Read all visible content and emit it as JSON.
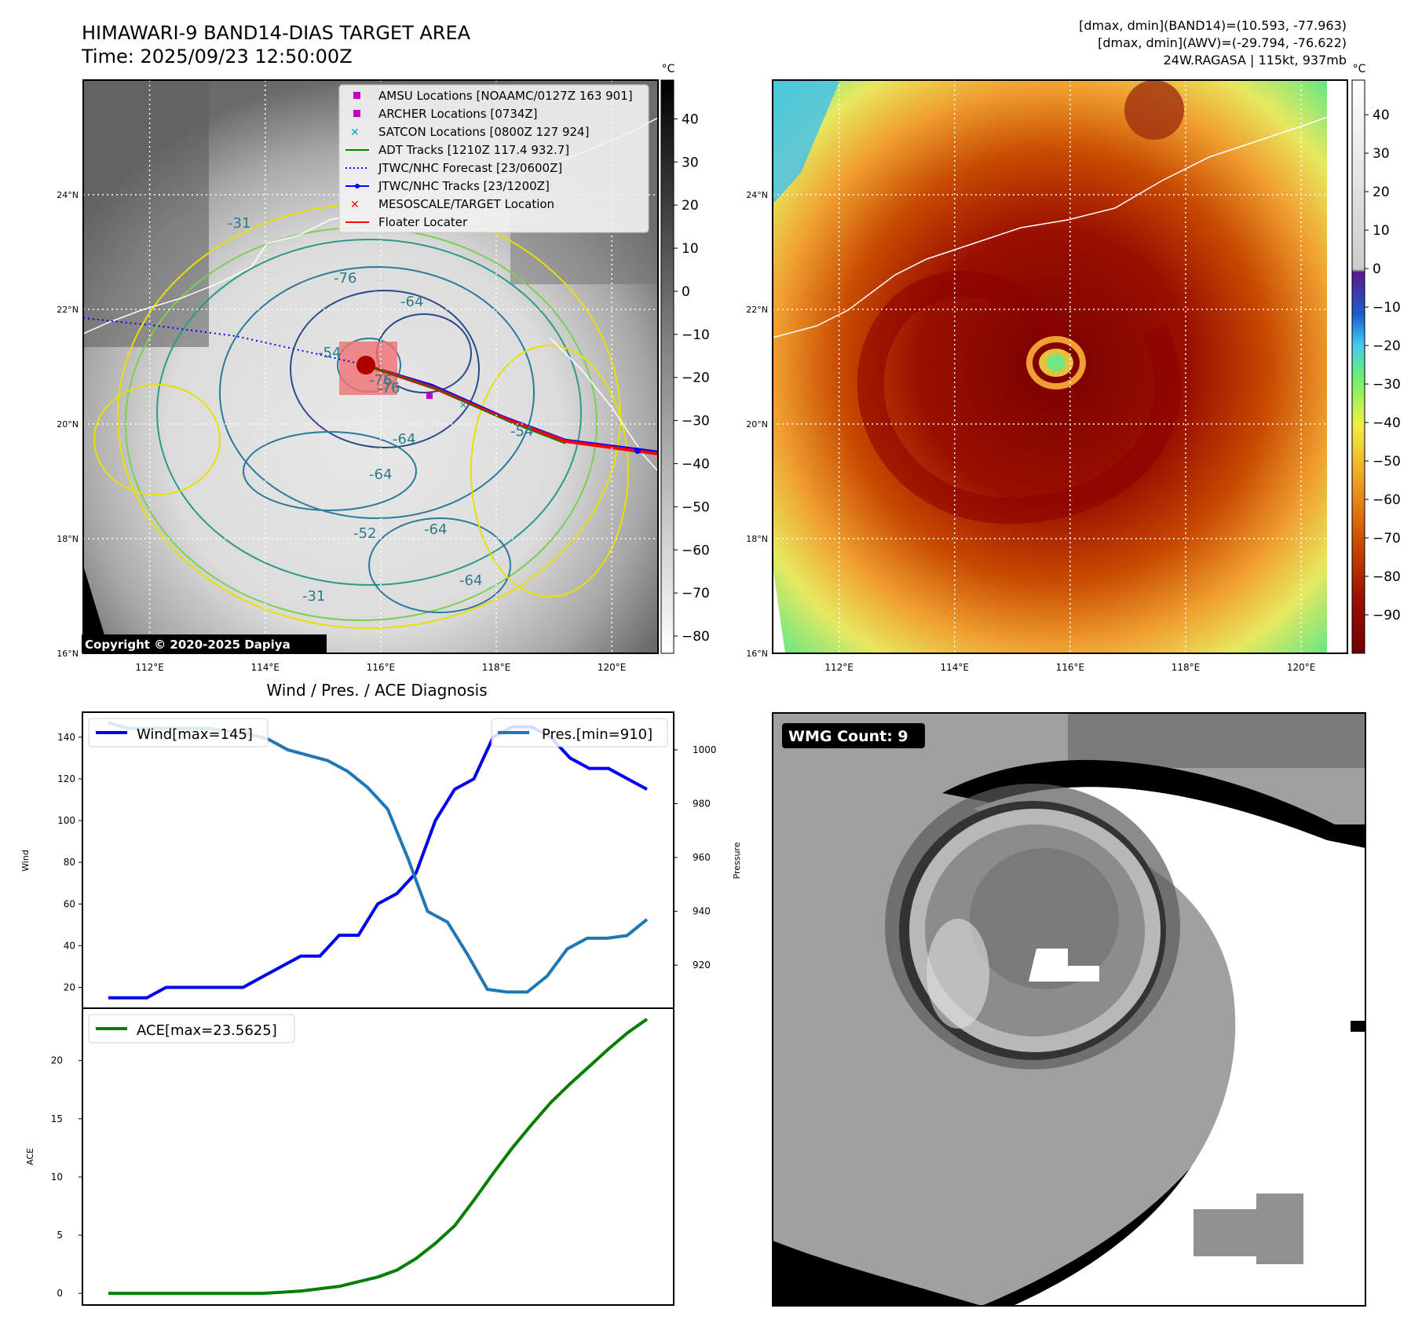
{
  "header": {
    "title_line1": "HIMAWARI-9 BAND14-DIAS TARGET AREA",
    "title_line2": "Time: 2025/09/23 12:50:00Z",
    "info_line1": "[dmax, dmin](BAND14)=(10.593, -77.963)",
    "info_line2": "[dmax, dmin](AWV)=(-29.794, -76.622)",
    "info_line3": "24W.RAGASA | 115kt, 937mb"
  },
  "map_panel": {
    "copyright": "Copyright © 2020-2025 Dapiya",
    "lon_labels": [
      "112°E",
      "114°E",
      "116°E",
      "118°E",
      "120°E"
    ],
    "lon_values": [
      112,
      114,
      116,
      118,
      120
    ],
    "lat_labels": [
      "16°N",
      "18°N",
      "20°N",
      "22°N",
      "24°N"
    ],
    "lat_values": [
      16,
      18,
      20,
      22,
      24
    ],
    "extent": {
      "lon": [
        110.85,
        120.8
      ],
      "lat": [
        16,
        26
      ]
    },
    "contour_labels": [
      "-31",
      "-76",
      "-64",
      "-54",
      "-76",
      "-64",
      "-64",
      "-31",
      "-54",
      "-76",
      "-64",
      "-52",
      "-64"
    ],
    "legend": [
      {
        "label": "AMSU Locations [NOAAMC/0127Z 163 901]",
        "marker": "square",
        "color": "#c000c0"
      },
      {
        "label": "ARCHER Locations [0734Z]",
        "marker": "square",
        "color": "#c000c0"
      },
      {
        "label": "SATCON Locations [0800Z 127 924]",
        "marker": "x",
        "color": "#00b0b0"
      },
      {
        "label": "ADT Tracks [1210Z 117.4 932.7]",
        "marker": "line",
        "color": "#008000"
      },
      {
        "label": "JTWC/NHC Forecast [23/0600Z]",
        "marker": "dotted",
        "color": "#0000ff"
      },
      {
        "label": "JTWC/NHC Tracks [23/1200Z]",
        "marker": "line-dot",
        "color": "#0000ff"
      },
      {
        "label": "MESOSCALE/TARGET Location",
        "marker": "x",
        "color": "#ff0000"
      },
      {
        "label": "Floater Locater",
        "marker": "line",
        "color": "#ff0000"
      }
    ],
    "colorbar": {
      "unit": "°C",
      "ticks": [
        "40",
        "30",
        "20",
        "10",
        "0",
        "−10",
        "−20",
        "−30",
        "−40",
        "−50",
        "−60",
        "−70",
        "−80"
      ],
      "values": [
        40,
        30,
        20,
        10,
        0,
        -10,
        -20,
        -30,
        -40,
        -50,
        -60,
        -70,
        -80
      ],
      "range": [
        -84,
        49
      ]
    },
    "storm_center": {
      "lon": 115.85,
      "lat": 20.9
    }
  },
  "awv_panel": {
    "lon_labels": [
      "112°E",
      "114°E",
      "116°E",
      "118°E",
      "120°E"
    ],
    "lat_labels": [
      "16°N",
      "18°N",
      "20°N",
      "22°N",
      "24°N"
    ],
    "colorbar": {
      "unit": "°C",
      "ticks": [
        "40",
        "30",
        "20",
        "10",
        "0",
        "−10",
        "−20",
        "−30",
        "−40",
        "−50",
        "−60",
        "−70",
        "−80",
        "−90"
      ],
      "values": [
        40,
        30,
        20,
        10,
        0,
        -10,
        -20,
        -30,
        -40,
        -50,
        -60,
        -70,
        -80,
        -90
      ],
      "range": [
        -100,
        49
      ]
    }
  },
  "wmg_panel": {
    "label": "WMG Count: 9"
  },
  "chart_data": [
    {
      "type": "line",
      "title": "Wind / Pres. / ACE Diagnosis",
      "ylabel": "Wind",
      "y2label": "Pressure",
      "ylim": [
        10,
        152
      ],
      "y2lim": [
        904,
        1014
      ],
      "yticks": [
        "20",
        "40",
        "60",
        "80",
        "100",
        "120",
        "140"
      ],
      "y2ticks": [
        "920",
        "940",
        "960",
        "980",
        "1000"
      ],
      "series": [
        {
          "name": "Wind[max=145]",
          "axis": "left",
          "color": "#0000ee",
          "values": [
            15,
            15,
            15,
            20,
            20,
            20,
            20,
            20,
            25,
            30,
            35,
            35,
            45,
            45,
            60,
            65,
            75,
            100,
            115,
            120,
            140,
            145,
            145,
            140,
            130,
            125,
            125,
            120,
            115
          ]
        },
        {
          "name": "Pres.[min=910]",
          "axis": "right",
          "color": "#1f77b4",
          "values": [
            1010,
            1008,
            1008,
            1008,
            1008,
            1008,
            1007,
            1006,
            1004,
            1000,
            998,
            996,
            992,
            986,
            978,
            960,
            940,
            936,
            924,
            911,
            910,
            910,
            916,
            926,
            930,
            930,
            931,
            937
          ]
        }
      ]
    },
    {
      "type": "line",
      "ylabel": "ACE",
      "ylim": [
        -1,
        24.5
      ],
      "yticks": [
        "0",
        "5",
        "10",
        "15",
        "20"
      ],
      "series": [
        {
          "name": "ACE[max=23.5625]",
          "color": "#007f00",
          "values": [
            0,
            0,
            0,
            0,
            0,
            0,
            0,
            0,
            0,
            0.1,
            0.2,
            0.4,
            0.6,
            1.0,
            1.4,
            2.0,
            3.0,
            4.3,
            5.8,
            8.0,
            10.3,
            12.5,
            14.5,
            16.4,
            18.0,
            19.5,
            21.0,
            22.4,
            23.5625
          ]
        }
      ]
    }
  ]
}
